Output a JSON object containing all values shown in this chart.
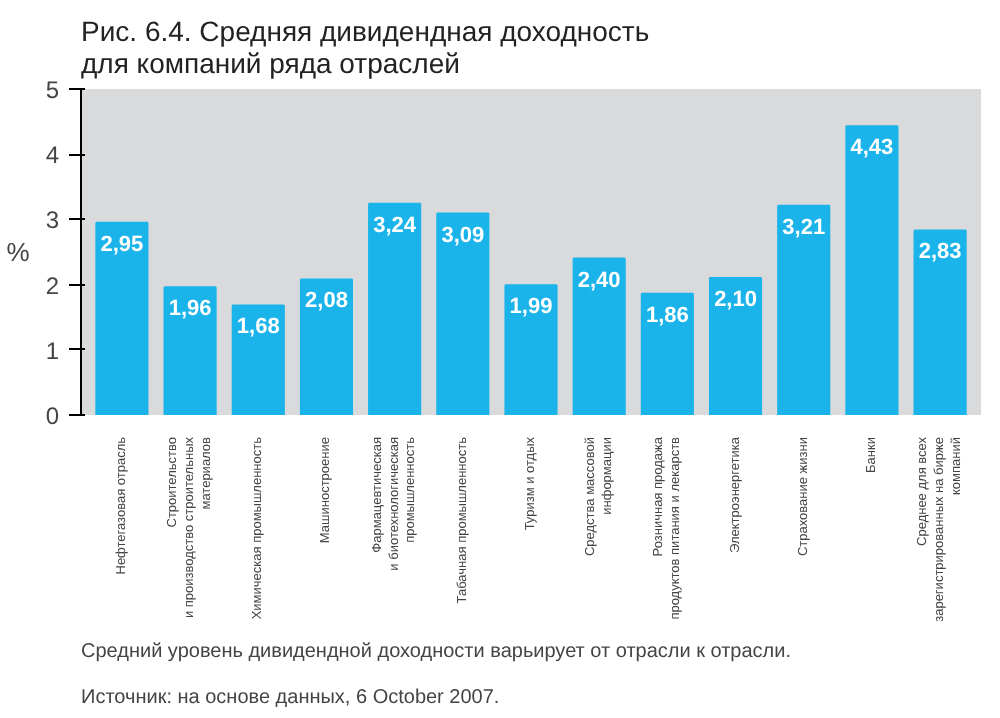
{
  "chart_data": {
    "type": "bar",
    "title": "Рис. 6.4. Средняя дивидендная доходность\nдля компаний ряда отраслей",
    "ylabel": "%",
    "categories": [
      "Нефтегазовая отрасль",
      "Строительство\nи производство строительных\nматериалов",
      "Химическая промышленность",
      "Машиностроение",
      "Фармацевтическая\nи биотехнологическая\nпромышленность",
      "Табачная промышленность",
      "Туризм и отдых",
      "Средства массовой\nинформации",
      "Розничная продажа\nпродуктов питания и лекарств",
      "Электроэнергетика",
      "Страхование жизни",
      "Банки",
      "Среднее для всех\nзарегистрированных на бирже\nкомпаний"
    ],
    "values": [
      2.95,
      1.96,
      1.68,
      2.08,
      3.24,
      3.09,
      1.99,
      2.4,
      1.86,
      2.1,
      3.21,
      4.43,
      2.83
    ],
    "value_labels": [
      "2,95",
      "1,96",
      "1,68",
      "2,08",
      "3,24",
      "3,09",
      "1,99",
      "2,40",
      "1,86",
      "2,10",
      "3,21",
      "4,43",
      "2,83"
    ],
    "color": "#1ab4ea",
    "ylim": [
      0,
      5
    ],
    "yticks": [
      0,
      1,
      2,
      3,
      4,
      5
    ],
    "grid": false,
    "annotations": [
      "Средний уровень дивидендной доходности варьирует от отрасли к отрасли.",
      "Источник: на основе данных, 6 October 2007."
    ]
  }
}
